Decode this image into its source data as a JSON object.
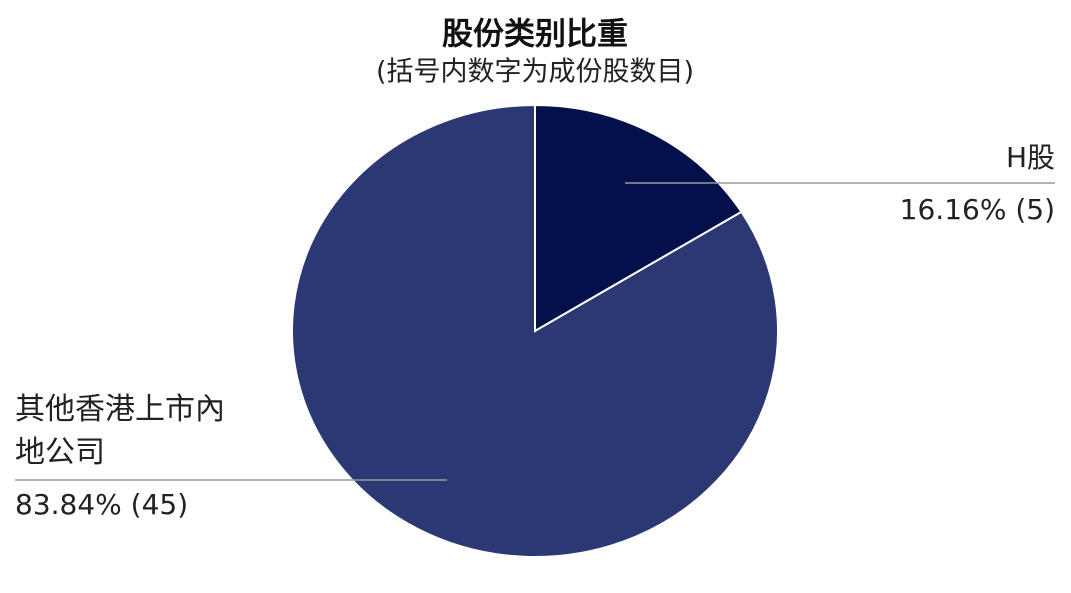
{
  "chart_data": {
    "type": "pie",
    "title": "股份类别比重",
    "subtitle": "(括号内数字为成份股数目)",
    "categories": [
      "H股",
      "其他香港上市內地公司"
    ],
    "values": [
      16.16,
      83.84
    ],
    "value_labels": [
      "16.16% (5)",
      "83.84% (45)"
    ],
    "colors": [
      "#03104a",
      "#2b3873"
    ]
  }
}
